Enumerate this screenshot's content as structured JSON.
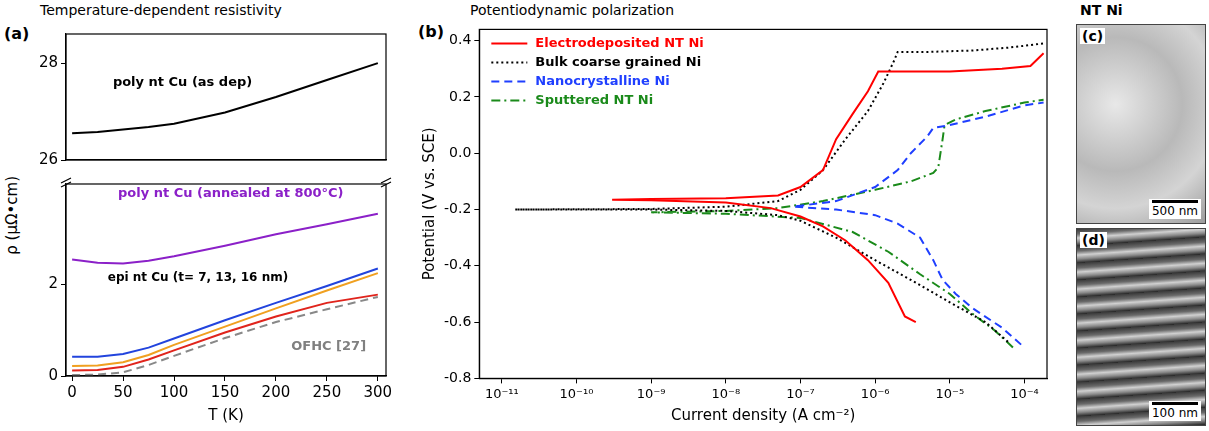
{
  "chart_data": [
    {
      "type": "line",
      "panel": "(a)",
      "title": "Temperature-dependent resistivity",
      "y_label": "ρ (μΩ•cm)",
      "tick_labels": "y",
      "xlim": [
        -6,
        308
      ],
      "ylim": [
        26,
        28.6
      ],
      "yticks": [
        26,
        28
      ],
      "x": [
        0,
        25,
        50,
        75,
        100,
        150,
        200,
        250,
        300
      ],
      "series": [
        {
          "color": "#000000",
          "line_style": "solid",
          "values": [
            26.55,
            26.58,
            26.63,
            26.68,
            26.75,
            26.98,
            27.3,
            27.65,
            28.0
          ]
        }
      ],
      "annotations": [
        {
          "text": "poly nt Cu (as dep)",
          "x": 40,
          "y": 27.6,
          "color": "#000000"
        }
      ]
    },
    {
      "type": "line",
      "x_label": "T (K)",
      "xlim": [
        -6,
        308
      ],
      "xticks": [
        0,
        50,
        100,
        150,
        200,
        250,
        300
      ],
      "ylim": [
        0,
        4.2
      ],
      "yticks": [
        0,
        2
      ],
      "x": [
        0,
        25,
        50,
        75,
        100,
        150,
        200,
        250,
        300
      ],
      "series": [
        {
          "color": "#8b20c8",
          "line_style": "solid",
          "values": [
            2.55,
            2.48,
            2.46,
            2.52,
            2.62,
            2.85,
            3.1,
            3.32,
            3.55
          ]
        },
        {
          "color": "#2244dd",
          "line_style": "solid",
          "values": [
            0.42,
            0.42,
            0.48,
            0.62,
            0.82,
            1.22,
            1.6,
            1.97,
            2.35
          ]
        },
        {
          "color": "#f0a020",
          "line_style": "solid",
          "values": [
            0.22,
            0.23,
            0.3,
            0.46,
            0.68,
            1.08,
            1.48,
            1.87,
            2.25
          ]
        },
        {
          "color": "#e0241c",
          "line_style": "solid",
          "values": [
            0.12,
            0.13,
            0.2,
            0.36,
            0.56,
            0.95,
            1.3,
            1.6,
            1.78
          ]
        },
        {
          "color": "#888888",
          "line_style": "dashed",
          "values": [
            0.02,
            0.03,
            0.08,
            0.24,
            0.44,
            0.83,
            1.18,
            1.46,
            1.73
          ]
        }
      ],
      "annotations": [
        {
          "text": "poly nt Cu (annealed at 800°C)",
          "x": 45,
          "y": 4.0,
          "color": "#8b20c8"
        },
        {
          "text": "epi nt Cu (t= 7, 13, 16 nm)",
          "x": 35,
          "y": 2.15,
          "color": "#000000"
        },
        {
          "text": "OFHC [27]",
          "x": 215,
          "y": 0.65,
          "color": "#808080"
        }
      ]
    },
    {
      "type": "line",
      "panel": "(b)",
      "title": "Potentiodynamic polarization",
      "x_label": "Current density (A cm⁻²)",
      "y_label": "Potential (V vs. SCE)",
      "log": "x",
      "legend": "top-left",
      "xlim": [
        5e-12,
        0.0002
      ],
      "xticks": [
        {
          "value": 1e-11,
          "label": "10⁻¹¹"
        },
        {
          "value": 1e-10,
          "label": "10⁻¹⁰"
        },
        {
          "value": 1e-09,
          "label": "10⁻⁹"
        },
        {
          "value": 1e-08,
          "label": "10⁻⁸"
        },
        {
          "value": 1e-07,
          "label": "10⁻⁷"
        },
        {
          "value": 1e-06,
          "label": "10⁻⁶"
        },
        {
          "value": 1e-05,
          "label": "10⁻⁵"
        },
        {
          "value": 0.0001,
          "label": "10⁻⁴"
        }
      ],
      "ylim": [
        -0.8,
        0.44
      ],
      "yticks": [
        -0.8,
        -0.6,
        -0.4,
        -0.2,
        {
          "value": 0,
          "label": "0.0"
        },
        0.2,
        0.4
      ],
      "series": [
        {
          "name": "Electrodeposited NT Ni",
          "color": "#ff0000",
          "line_style": "solid",
          "x": [
            3.5e-06,
            2.5e-06,
            1.5e-06,
            8e-07,
            4e-07,
            2e-07,
            1e-07,
            4e-08,
            1e-08,
            1e-09,
            3e-10,
            1e-09,
            1e-08,
            5e-08,
            1e-07,
            2e-07,
            3e-07,
            5e-07,
            8e-07,
            1.1e-06,
            3e-06,
            1e-05,
            5e-05,
            0.00012,
            0.00018
          ],
          "values": [
            -0.6,
            -0.58,
            -0.46,
            -0.38,
            -0.31,
            -0.26,
            -0.225,
            -0.195,
            -0.175,
            -0.167,
            -0.165,
            -0.163,
            -0.16,
            -0.15,
            -0.12,
            -0.06,
            0.05,
            0.14,
            0.22,
            0.29,
            0.29,
            0.29,
            0.3,
            0.31,
            0.355
          ]
        },
        {
          "name": "Bulk coarse grained Ni",
          "color": "#000000",
          "line_style": "dotted",
          "x": [
            6e-05,
            3e-05,
            1e-05,
            3e-06,
            1e-06,
            3e-07,
            1e-07,
            5e-08,
            1e-08,
            1e-09,
            1.5e-11,
            1e-09,
            1e-08,
            5e-08,
            1e-07,
            2e-07,
            4e-07,
            8e-07,
            1.3e-06,
            1.8e-06,
            2e-06,
            5e-06,
            2e-05,
            6e-05,
            0.00018
          ],
          "values": [
            -0.67,
            -0.6,
            -0.53,
            -0.45,
            -0.38,
            -0.3,
            -0.24,
            -0.22,
            -0.205,
            -0.2,
            -0.2,
            -0.198,
            -0.19,
            -0.17,
            -0.13,
            -0.06,
            0.05,
            0.15,
            0.25,
            0.33,
            0.36,
            0.36,
            0.365,
            0.375,
            0.39
          ]
        },
        {
          "name": "Nanocrystalline Ni",
          "color": "#1f3fff",
          "line_style": "dashed",
          "x": [
            9e-05,
            5e-05,
            2e-05,
            1.2e-05,
            8e-06,
            6e-06,
            4e-06,
            2e-06,
            1e-06,
            3e-07,
            8e-08,
            3e-07,
            1e-06,
            2e-06,
            3e-06,
            5e-06,
            6e-06,
            1e-05,
            3e-05,
            0.0001,
            0.00018
          ],
          "values": [
            -0.68,
            -0.62,
            -0.55,
            -0.5,
            -0.45,
            -0.38,
            -0.3,
            -0.25,
            -0.22,
            -0.2,
            -0.19,
            -0.17,
            -0.12,
            -0.06,
            0.0,
            0.06,
            0.09,
            0.1,
            0.13,
            0.17,
            0.18
          ]
        },
        {
          "name": "Sputtered NT Ni",
          "color": "#1a8a1a",
          "line_style": "dash-dot",
          "x": [
            7e-05,
            4e-05,
            2e-05,
            1e-05,
            4e-06,
            1.5e-06,
            5e-07,
            1e-07,
            1e-08,
            1e-09,
            1e-08,
            5e-08,
            2e-07,
            1e-06,
            3e-06,
            6e-06,
            7e-06,
            8e-06,
            8.5e-06,
            1.2e-05,
            3e-05,
            0.0001,
            0.00018
          ],
          "values": [
            -0.69,
            -0.63,
            -0.57,
            -0.5,
            -0.43,
            -0.35,
            -0.28,
            -0.23,
            -0.215,
            -0.21,
            -0.205,
            -0.195,
            -0.17,
            -0.13,
            -0.1,
            -0.07,
            -0.05,
            0.05,
            0.1,
            0.12,
            0.15,
            0.18,
            0.19
          ]
        }
      ]
    }
  ],
  "images": {
    "heading": "NT Ni",
    "panels": [
      {
        "panel": "(c)",
        "scale_bar": "500 nm"
      },
      {
        "panel": "(d)",
        "scale_bar": "100 nm"
      }
    ]
  }
}
